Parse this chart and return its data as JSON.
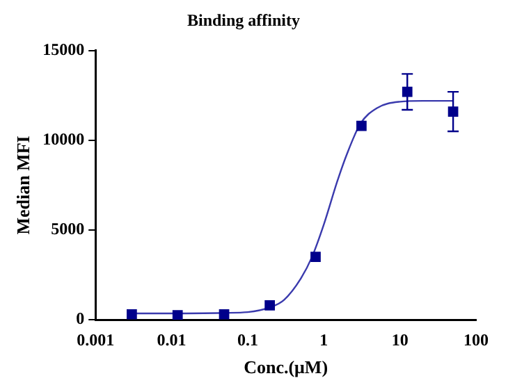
{
  "chart_data": {
    "type": "scatter",
    "title": "Binding affinity",
    "xlabel": "Conc.(μM)",
    "ylabel": "Median MFI",
    "log": "x",
    "xlim": [
      0.001,
      100
    ],
    "xticks": [
      0.001,
      0.01,
      0.1,
      1,
      10,
      100
    ],
    "ylim": [
      0,
      15000
    ],
    "yticks": [
      0,
      5000,
      10000,
      15000
    ],
    "grid": false,
    "legend": false,
    "series": [
      {
        "type": "scatter",
        "color": "#00008b",
        "marker": "square",
        "x": [
          0.003,
          0.012,
          0.049,
          0.195,
          0.78,
          3.125,
          12.5,
          50
        ],
        "values": [
          300,
          250,
          300,
          800,
          3500,
          10800,
          12700,
          11600
        ],
        "errors": [
          null,
          null,
          null,
          null,
          null,
          null,
          1000,
          1100
        ]
      },
      {
        "type": "line",
        "color": "#3a3aad",
        "marker": "none",
        "x": [
          0.003,
          0.01,
          0.05,
          0.1,
          0.2,
          0.3,
          0.5,
          0.7,
          1,
          1.5,
          2,
          3,
          5,
          10,
          20,
          50
        ],
        "values": [
          350,
          350,
          380,
          420,
          700,
          1100,
          2300,
          3500,
          5300,
          7700,
          9200,
          10900,
          11800,
          12150,
          12200,
          12200
        ]
      }
    ]
  }
}
